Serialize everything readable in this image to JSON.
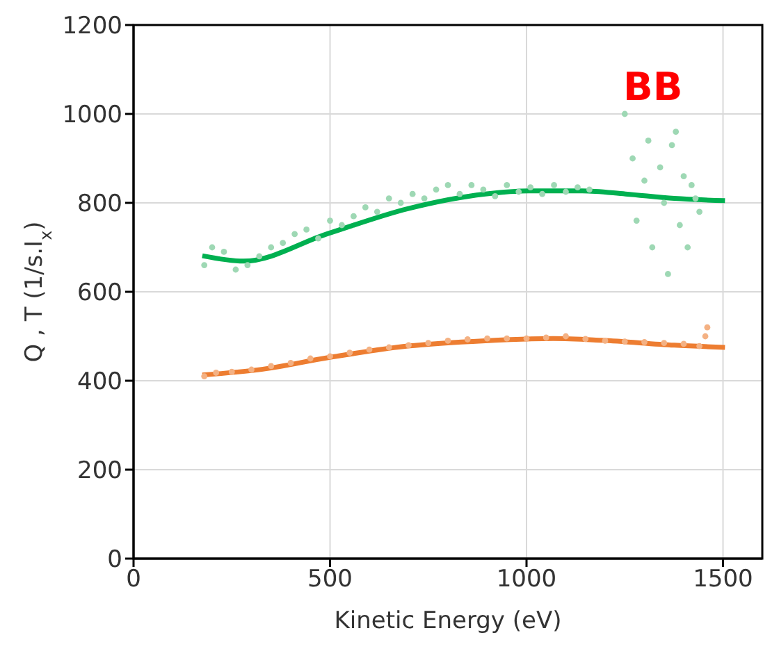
{
  "chart_data": {
    "type": "scatter",
    "xlabel": "Kinetic Energy (eV)",
    "ylabel": "Q , T (1/s.I$_{x}$)",
    "annotations": [
      "BB"
    ],
    "xlim": [
      0,
      1600
    ],
    "xticks": [
      0,
      500,
      1000,
      1500
    ],
    "ylim": [
      0,
      1200
    ],
    "yticks": [
      0,
      200,
      400,
      600,
      800,
      1000,
      1200
    ],
    "grid": true,
    "marker": "circle",
    "series": [
      {
        "color": "#9ed8b4",
        "x": [
          180,
          200,
          230,
          260,
          290,
          320,
          350,
          380,
          410,
          440,
          470,
          500,
          530,
          560,
          590,
          620,
          650,
          680,
          710,
          740,
          770,
          800,
          830,
          860,
          890,
          920,
          950,
          980,
          1010,
          1040,
          1070,
          1100,
          1130,
          1160,
          1250,
          1270,
          1280,
          1300,
          1310,
          1320,
          1340,
          1350,
          1360,
          1370,
          1380,
          1390,
          1400,
          1410,
          1420,
          1430,
          1440
        ],
        "values": [
          660,
          700,
          690,
          650,
          660,
          680,
          700,
          710,
          730,
          740,
          720,
          760,
          750,
          770,
          790,
          780,
          810,
          800,
          820,
          810,
          830,
          840,
          820,
          840,
          830,
          815,
          840,
          825,
          835,
          820,
          840,
          825,
          835,
          830,
          1000,
          900,
          760,
          850,
          940,
          700,
          880,
          800,
          640,
          930,
          960,
          750,
          860,
          700,
          840,
          810,
          780
        ]
      },
      {
        "color": "#f4b183",
        "x": [
          180,
          210,
          250,
          300,
          350,
          400,
          450,
          500,
          550,
          600,
          650,
          700,
          750,
          800,
          850,
          900,
          950,
          1000,
          1050,
          1100,
          1150,
          1200,
          1250,
          1300,
          1350,
          1400,
          1440,
          1455,
          1460
        ],
        "values": [
          410,
          418,
          420,
          425,
          433,
          440,
          450,
          455,
          463,
          470,
          475,
          480,
          485,
          490,
          493,
          495,
          495,
          495,
          497,
          500,
          494,
          490,
          488,
          487,
          485,
          483,
          478,
          500,
          520
        ]
      },
      {
        "type": "line",
        "marker": "none",
        "color": "#00b050",
        "x": [
          175,
          280,
          495,
          698,
          895,
          1006,
          1142,
          1252,
          1376,
          1505
        ],
        "values": [
          681,
          669,
          731,
          787,
          820,
          827,
          827,
          820,
          810,
          805
        ]
      },
      {
        "type": "line",
        "marker": "none",
        "color": "#ed7d31",
        "x": [
          175,
          329,
          495,
          698,
          895,
          1068,
          1191,
          1376,
          1505
        ],
        "values": [
          413,
          426,
          452,
          478,
          490,
          495,
          491,
          480,
          475
        ]
      }
    ]
  }
}
